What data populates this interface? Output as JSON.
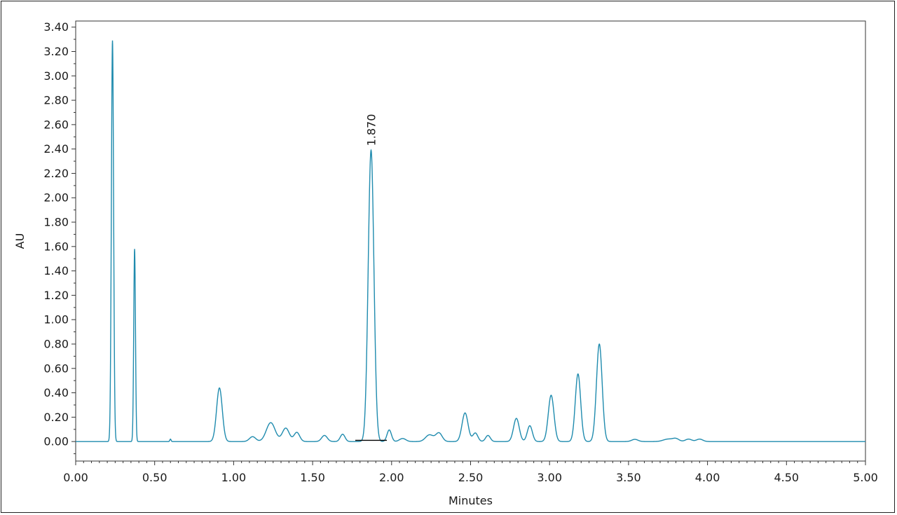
{
  "chart_data": {
    "type": "line",
    "title": "",
    "xlabel": "Minutes",
    "ylabel": "AU",
    "xlim": [
      0.0,
      5.0
    ],
    "ylim": [
      -0.16,
      3.45
    ],
    "grid": false,
    "xticks": [
      "0.00",
      "0.50",
      "1.00",
      "1.50",
      "2.00",
      "2.50",
      "3.00",
      "3.50",
      "4.00",
      "4.50",
      "5.00"
    ],
    "yticks": [
      "0.00",
      "0.20",
      "0.40",
      "0.60",
      "0.80",
      "1.00",
      "1.20",
      "1.40",
      "1.60",
      "1.80",
      "2.00",
      "2.20",
      "2.40",
      "2.60",
      "2.80",
      "3.00",
      "3.20",
      "3.40"
    ],
    "line_color": "#1f8bae",
    "baseline_color": "#000000",
    "peaks": [
      {
        "rt": 0.233,
        "height": 3.29,
        "width": 0.007
      },
      {
        "rt": 0.373,
        "height": 1.58,
        "width": 0.0055
      },
      {
        "rt": 0.6,
        "height": 0.02,
        "width": 0.004
      },
      {
        "rt": 0.91,
        "height": 0.44,
        "width": 0.018
      },
      {
        "rt": 1.12,
        "height": 0.04,
        "width": 0.02
      },
      {
        "rt": 1.235,
        "height": 0.155,
        "width": 0.028
      },
      {
        "rt": 1.33,
        "height": 0.11,
        "width": 0.022
      },
      {
        "rt": 1.4,
        "height": 0.075,
        "width": 0.018
      },
      {
        "rt": 1.575,
        "height": 0.05,
        "width": 0.018
      },
      {
        "rt": 1.69,
        "height": 0.06,
        "width": 0.015
      },
      {
        "rt": 1.87,
        "height": 2.39,
        "width": 0.018
      },
      {
        "rt": 1.985,
        "height": 0.095,
        "width": 0.014
      },
      {
        "rt": 2.07,
        "height": 0.025,
        "width": 0.02
      },
      {
        "rt": 2.24,
        "height": 0.055,
        "width": 0.025
      },
      {
        "rt": 2.3,
        "height": 0.07,
        "width": 0.02
      },
      {
        "rt": 2.465,
        "height": 0.235,
        "width": 0.019
      },
      {
        "rt": 2.53,
        "height": 0.07,
        "width": 0.016
      },
      {
        "rt": 2.61,
        "height": 0.05,
        "width": 0.015
      },
      {
        "rt": 2.79,
        "height": 0.19,
        "width": 0.018
      },
      {
        "rt": 2.875,
        "height": 0.13,
        "width": 0.016
      },
      {
        "rt": 3.01,
        "height": 0.38,
        "width": 0.018
      },
      {
        "rt": 3.18,
        "height": 0.555,
        "width": 0.017
      },
      {
        "rt": 3.315,
        "height": 0.8,
        "width": 0.018
      },
      {
        "rt": 3.54,
        "height": 0.018,
        "width": 0.02
      },
      {
        "rt": 3.75,
        "height": 0.02,
        "width": 0.03
      },
      {
        "rt": 3.8,
        "height": 0.022,
        "width": 0.02
      },
      {
        "rt": 3.88,
        "height": 0.02,
        "width": 0.02
      },
      {
        "rt": 3.95,
        "height": 0.02,
        "width": 0.02
      }
    ],
    "annotation": {
      "text": "1.870",
      "x": 1.87,
      "y": 2.39
    },
    "integration_baseline": {
      "x_start": 1.77,
      "x_end": 1.97,
      "y": 0.01
    }
  }
}
